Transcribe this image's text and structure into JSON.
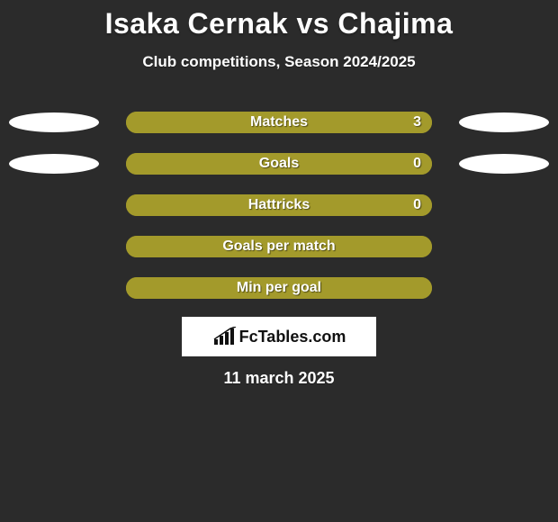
{
  "background_color": "#2b2b2b",
  "title": {
    "text": "Isaka Cernak vs Chajima",
    "color": "#ffffff",
    "fontsize": 32
  },
  "subtitle": {
    "text": "Club competitions, Season 2024/2025",
    "color": "#ffffff",
    "fontsize": 17
  },
  "ellipse_color": "#ffffff",
  "bar_bg_color": "#a39a2b",
  "bar_fill_color": "#a39a2b",
  "bar_label_color": "#ffffff",
  "rows": [
    {
      "label": "Matches",
      "value": "3",
      "fill_pct": 100,
      "show_value": true,
      "show_ellipses": true
    },
    {
      "label": "Goals",
      "value": "0",
      "fill_pct": 100,
      "show_value": true,
      "show_ellipses": true
    },
    {
      "label": "Hattricks",
      "value": "0",
      "fill_pct": 100,
      "show_value": true,
      "show_ellipses": false
    },
    {
      "label": "Goals per match",
      "value": "",
      "fill_pct": 100,
      "show_value": false,
      "show_ellipses": false
    },
    {
      "label": "Min per goal",
      "value": "",
      "fill_pct": 100,
      "show_value": false,
      "show_ellipses": false
    }
  ],
  "logo": {
    "text": "FcTables.com",
    "icon_color": "#111111"
  },
  "date": {
    "text": "11 march 2025",
    "color": "#ffffff"
  }
}
